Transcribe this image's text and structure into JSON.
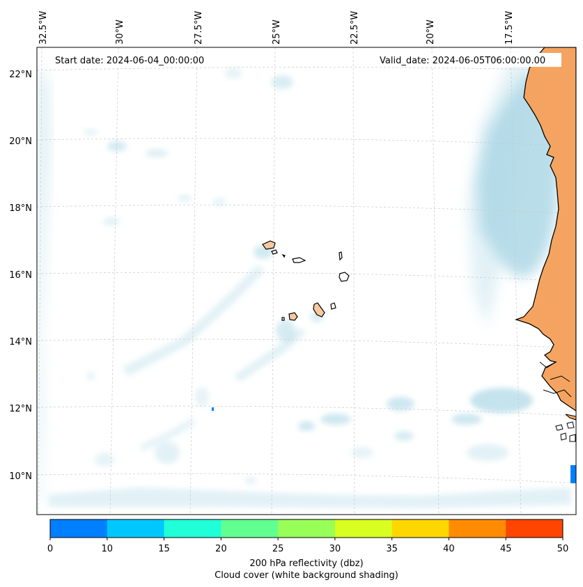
{
  "map": {
    "start_label": "Start date: 2024-06-04_00:00:00",
    "valid_label": "Valid_date: 2024-06-05T06:00:00.00",
    "lon_labels": [
      "32.5°W",
      "30°W",
      "27.5°W",
      "25°W",
      "22.5°W",
      "20°W",
      "17.5°W"
    ],
    "lat_labels": [
      "22°N",
      "20°N",
      "18°N",
      "16°N",
      "14°N",
      "12°N",
      "10°N"
    ],
    "land_color": "#f4a460",
    "cloud_color": "#add8e6",
    "ocean_color": "#ffffff"
  },
  "colorbar": {
    "ticks": [
      "0",
      "10",
      "15",
      "20",
      "25",
      "30",
      "35",
      "40",
      "45",
      "50"
    ],
    "colors": [
      "#0080ff",
      "#00c8ff",
      "#20ffd8",
      "#60ff90",
      "#98ff58",
      "#d8ff20",
      "#ffd700",
      "#ff8c00",
      "#ff4500"
    ],
    "label_line1": "200 hPa reflectivity (dbz)",
    "label_line2": "Cloud cover (white background shading)"
  }
}
